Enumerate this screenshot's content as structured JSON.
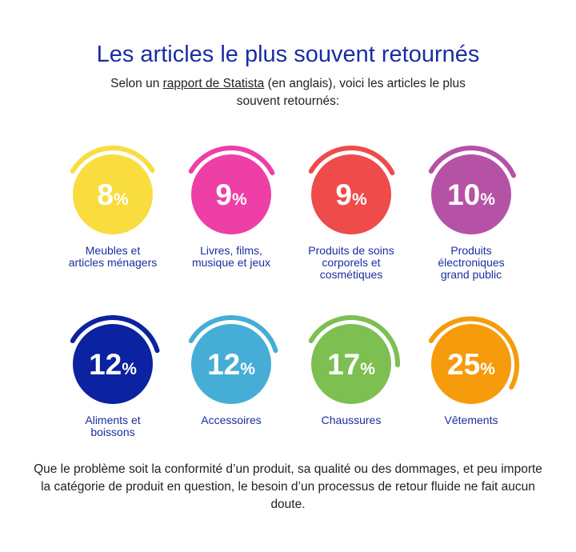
{
  "header": {
    "title": "Les articles le plus souvent retournés",
    "subtitle_before": "Selon un ",
    "subtitle_link": "rapport de Statista",
    "subtitle_after": " (en anglais), voici les articles le plus souvent retournés:"
  },
  "footer": {
    "text": "Que le problème soit la conformité d’un produit, sa qualité ou des dommages, et peu importe la catégorie de produit en question, le besoin d’un processus de retour fluide ne fait aucun doute."
  },
  "colors": {
    "title": "#1a2ea0",
    "label": "#1a2ea0"
  },
  "chart_data": {
    "type": "bar",
    "unit": "%",
    "categories": [
      "Meubles et articles ménagers",
      "Livres, films, musique et jeux",
      "Produits de soins corporels et cosmétiques",
      "Produits électroniques grand public",
      "Aliments et boissons",
      "Accessoires",
      "Chaussures",
      "Vêtements"
    ],
    "values": [
      8,
      9,
      9,
      10,
      12,
      12,
      17,
      25
    ],
    "value_labels": [
      "8",
      "9",
      "9",
      "10",
      "12",
      "12",
      "17",
      "25"
    ],
    "label_lines": [
      [
        "Meubles et",
        "articles ménagers"
      ],
      [
        "Livres, films,",
        "musique et jeux"
      ],
      [
        "Produits de soins",
        "corporels et",
        "cosmétiques"
      ],
      [
        "Produits",
        "électroniques",
        "grand public"
      ],
      [
        "Aliments et",
        "boissons"
      ],
      [
        "Accessoires"
      ],
      [
        "Chaussures"
      ],
      [
        "Vêtements"
      ]
    ],
    "colors": [
      "#f9dd3f",
      "#ee3fa7",
      "#ef4b4b",
      "#b552a6",
      "#0b23a0",
      "#46add6",
      "#7dbf51",
      "#f59b0c"
    ]
  }
}
